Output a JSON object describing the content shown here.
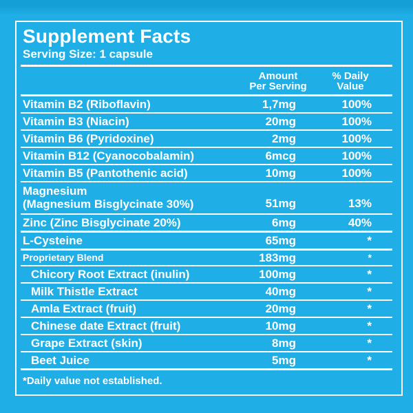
{
  "label": {
    "title": "Supplement Facts",
    "serving_size": "Serving Size: 1 capsule",
    "columns": {
      "amount_line1": "Amount",
      "amount_line2": "Per Serving",
      "dv_line1": "% Daily",
      "dv_line2": "Value"
    },
    "rows": [
      {
        "name": "Vitamin B2 (Riboflavin)",
        "amount": "1,7mg",
        "dv": "100%",
        "divider": "thin"
      },
      {
        "name": "Vitamin B3 (Niacin)",
        "amount": "20mg",
        "dv": "100%",
        "divider": "thin"
      },
      {
        "name": "Vitamin B6 (Pyridoxine)",
        "amount": "2mg",
        "dv": "100%",
        "divider": "thin"
      },
      {
        "name": "Vitamin B12 (Cyanocobalamin)",
        "amount": "6mcg",
        "dv": "100%",
        "divider": "thin"
      },
      {
        "name": "Vitamin B5 (Pantothenic acid)",
        "amount": "10mg",
        "dv": "100%",
        "divider": "thin"
      },
      {
        "name": "Magnesium",
        "name2": "(Magnesium Bisglycinate 30%)",
        "amount": "51mg",
        "dv": "13%",
        "divider": "thin"
      },
      {
        "name": "Zinc (Zinc Bisglycinate 20%)",
        "amount": "6mg",
        "dv": "40%",
        "divider": "thick"
      },
      {
        "name": "L-Cysteine",
        "amount": "65mg",
        "dv": "*",
        "divider": "thick"
      },
      {
        "name": "Proprietary Blend",
        "amount": "183mg",
        "dv": "*",
        "divider": "thin",
        "style": "blend"
      },
      {
        "name": "Chicory Root Extract (inulin)",
        "amount": "100mg",
        "dv": "*",
        "divider": "thin",
        "style": "sub"
      },
      {
        "name": "Milk Thistle Extract",
        "amount": "40mg",
        "dv": "*",
        "divider": "thin",
        "style": "sub"
      },
      {
        "name": "Amla Extract (fruit)",
        "amount": "20mg",
        "dv": "*",
        "divider": "thin",
        "style": "sub"
      },
      {
        "name": "Chinese date Extract (fruit)",
        "amount": "10mg",
        "dv": "*",
        "divider": "thin",
        "style": "sub"
      },
      {
        "name": "Grape Extract (skin)",
        "amount": "8mg",
        "dv": "*",
        "divider": "thin",
        "style": "sub"
      },
      {
        "name": "Beet Juice",
        "amount": "5mg",
        "dv": "*",
        "divider": "thick",
        "style": "sub"
      }
    ],
    "footnote": "*Daily value not established.",
    "colors": {
      "background": "#1FAEE5",
      "background_top_band": "#149FD6",
      "text": "#FFFFFF",
      "rule": "#FFFFFF"
    }
  }
}
